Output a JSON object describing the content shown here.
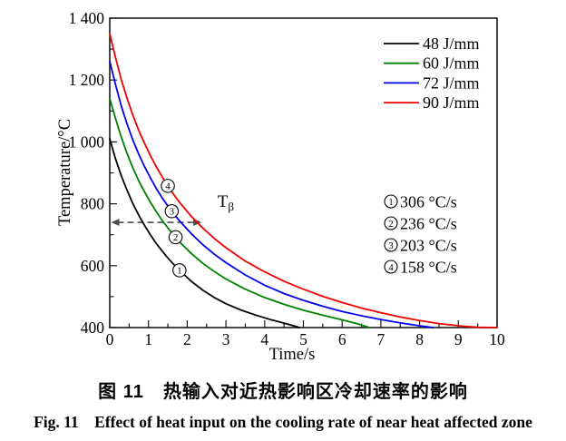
{
  "figure": {
    "caption_zh": "图 11　热输入对近热影响区冷却速率的影响",
    "caption_en": "Fig. 11　Effect of heat input on the cooling rate of near heat affected zone"
  },
  "chart_data": {
    "type": "line",
    "title": "",
    "xlabel": "Time/s",
    "ylabel": "Temperature/°C",
    "xlim": [
      0,
      10
    ],
    "ylim": [
      400,
      1400
    ],
    "grid": false,
    "legend_position": "top-right-inside",
    "x_major_ticks": [
      0,
      1,
      2,
      3,
      4,
      5,
      6,
      7,
      8,
      9,
      10
    ],
    "x_tick_labels": [
      "0",
      "1",
      "2",
      "3",
      "4",
      "5",
      "6",
      "7",
      "8",
      "9",
      "10"
    ],
    "x_minor_step": 0.5,
    "y_major_ticks": [
      400,
      600,
      800,
      1000,
      1200,
      1400
    ],
    "y_tick_labels": [
      "400",
      "600",
      "800",
      "1 000",
      "1 200",
      "1 400"
    ],
    "y_minor_step": 100,
    "series": [
      {
        "name": "48 J/mm",
        "color": "#000000",
        "points": [
          [
            0,
            1010
          ],
          [
            0.15,
            945
          ],
          [
            0.3,
            890
          ],
          [
            0.45,
            843
          ],
          [
            0.6,
            800
          ],
          [
            0.75,
            763
          ],
          [
            0.9,
            730
          ],
          [
            1.05,
            700
          ],
          [
            1.2,
            672
          ],
          [
            1.35,
            648
          ],
          [
            1.5,
            625
          ],
          [
            1.65,
            604
          ],
          [
            1.8,
            585
          ],
          [
            2.1,
            550
          ],
          [
            2.4,
            521
          ],
          [
            2.7,
            497
          ],
          [
            3.0,
            477
          ],
          [
            3.4,
            456
          ],
          [
            3.8,
            439
          ],
          [
            4.2,
            424
          ],
          [
            4.6,
            411
          ],
          [
            4.9,
            400
          ]
        ]
      },
      {
        "name": "60 J/mm",
        "color": "#008000",
        "points": [
          [
            0,
            1140
          ],
          [
            0.15,
            1075
          ],
          [
            0.3,
            1015
          ],
          [
            0.45,
            962
          ],
          [
            0.6,
            915
          ],
          [
            0.75,
            874
          ],
          [
            0.9,
            838
          ],
          [
            1.05,
            805
          ],
          [
            1.2,
            775
          ],
          [
            1.35,
            747
          ],
          [
            1.5,
            722
          ],
          [
            1.65,
            699
          ],
          [
            1.8,
            677
          ],
          [
            2.1,
            640
          ],
          [
            2.4,
            608
          ],
          [
            2.7,
            581
          ],
          [
            3.0,
            557
          ],
          [
            3.5,
            524
          ],
          [
            4.0,
            497
          ],
          [
            4.5,
            475
          ],
          [
            5.0,
            456
          ],
          [
            5.5,
            440
          ],
          [
            6.0,
            425
          ],
          [
            6.4,
            412
          ],
          [
            6.7,
            400
          ]
        ]
      },
      {
        "name": "72 J/mm",
        "color": "#0000ee",
        "points": [
          [
            0,
            1260
          ],
          [
            0.15,
            1185
          ],
          [
            0.3,
            1115
          ],
          [
            0.45,
            1057
          ],
          [
            0.6,
            1005
          ],
          [
            0.75,
            960
          ],
          [
            0.9,
            920
          ],
          [
            1.05,
            884
          ],
          [
            1.2,
            850
          ],
          [
            1.35,
            820
          ],
          [
            1.5,
            793
          ],
          [
            1.65,
            768
          ],
          [
            1.8,
            745
          ],
          [
            2.1,
            704
          ],
          [
            2.4,
            668
          ],
          [
            2.7,
            637
          ],
          [
            3.0,
            610
          ],
          [
            3.5,
            570
          ],
          [
            4.0,
            537
          ],
          [
            4.5,
            510
          ],
          [
            5.0,
            488
          ],
          [
            5.5,
            469
          ],
          [
            6.0,
            452
          ],
          [
            6.5,
            438
          ],
          [
            7.0,
            426
          ],
          [
            7.5,
            415
          ],
          [
            8.0,
            406
          ],
          [
            8.35,
            400
          ]
        ]
      },
      {
        "name": "90 J/mm",
        "color": "#ee0000",
        "points": [
          [
            0,
            1350
          ],
          [
            0.15,
            1272
          ],
          [
            0.3,
            1200
          ],
          [
            0.45,
            1140
          ],
          [
            0.6,
            1085
          ],
          [
            0.75,
            1037
          ],
          [
            0.9,
            995
          ],
          [
            1.05,
            956
          ],
          [
            1.2,
            920
          ],
          [
            1.35,
            888
          ],
          [
            1.5,
            858
          ],
          [
            1.65,
            830
          ],
          [
            1.8,
            805
          ],
          [
            2.1,
            760
          ],
          [
            2.4,
            722
          ],
          [
            2.7,
            688
          ],
          [
            3.0,
            658
          ],
          [
            3.5,
            615
          ],
          [
            4.0,
            580
          ],
          [
            4.5,
            550
          ],
          [
            5.0,
            524
          ],
          [
            5.5,
            501
          ],
          [
            6.0,
            481
          ],
          [
            6.5,
            463
          ],
          [
            7.0,
            448
          ],
          [
            7.5,
            434
          ],
          [
            8.0,
            423
          ],
          [
            8.5,
            413
          ],
          [
            9.0,
            406
          ],
          [
            9.5,
            401
          ],
          [
            10,
            400
          ]
        ]
      }
    ],
    "curve_markers": [
      {
        "number": "1",
        "x": 1.8,
        "y": 585
      },
      {
        "number": "2",
        "x": 1.7,
        "y": 692
      },
      {
        "number": "3",
        "x": 1.6,
        "y": 776
      },
      {
        "number": "4",
        "x": 1.5,
        "y": 858
      }
    ],
    "annotations": [
      {
        "number": "1",
        "rate": "306 °C/s"
      },
      {
        "number": "2",
        "rate": "236 °C/s"
      },
      {
        "number": "3",
        "rate": "203 °C/s"
      },
      {
        "number": "4",
        "rate": "158 °C/s"
      }
    ],
    "reference_arrow": {
      "label_main": "T",
      "label_sub": "β",
      "y": 740,
      "x_start": 0,
      "x_end": 2.37
    }
  }
}
